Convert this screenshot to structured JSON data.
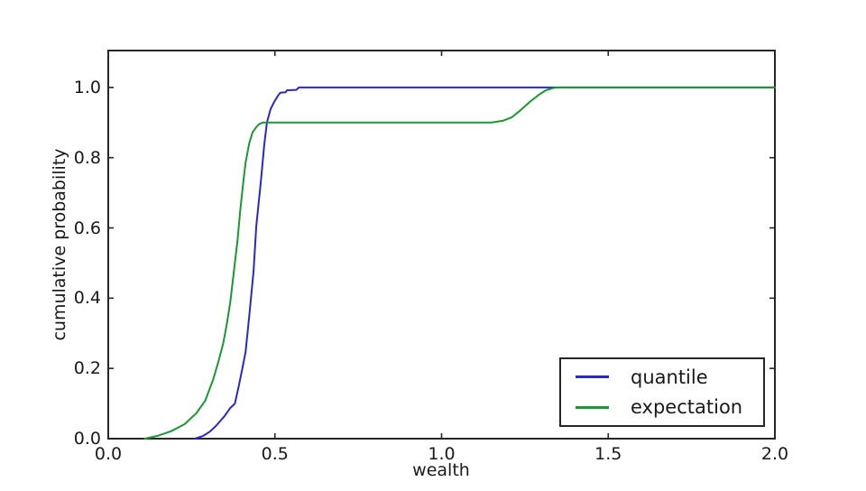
{
  "figure": {
    "background": "#ffffff",
    "text_color": "#1a1a1a",
    "axis_color": "#262626"
  },
  "chart_data": {
    "type": "line",
    "title": "",
    "xlabel": "wealth",
    "ylabel": "cumulative probability",
    "xlim": [
      0.0,
      2.0
    ],
    "ylim": [
      0.0,
      1.105
    ],
    "grid": false,
    "tick_direction": "in",
    "xticks": {
      "values": [
        0.0,
        0.5,
        1.0,
        1.5,
        2.0
      ],
      "labels": [
        "0.0",
        "0.5",
        "1.0",
        "1.5",
        "2.0"
      ]
    },
    "yticks": {
      "values": [
        0.0,
        0.2,
        0.4,
        0.6,
        0.8,
        1.0
      ],
      "labels": [
        "0.0",
        "0.2",
        "0.4",
        "0.6",
        "0.8",
        "1.0"
      ]
    },
    "legend": {
      "position": "lower right",
      "border_color": "#262626",
      "background": "#ffffff",
      "entries": [
        {
          "label": "quantile",
          "color": "#2828cc"
        },
        {
          "label": "expectation",
          "color": "#189a2e"
        }
      ]
    },
    "series": [
      {
        "name": "quantile",
        "color": "#2828cc",
        "points": [
          [
            0.26,
            0.0
          ],
          [
            0.285,
            0.008
          ],
          [
            0.305,
            0.02
          ],
          [
            0.323,
            0.036
          ],
          [
            0.347,
            0.062
          ],
          [
            0.366,
            0.087
          ],
          [
            0.38,
            0.1
          ],
          [
            0.393,
            0.156
          ],
          [
            0.404,
            0.208
          ],
          [
            0.412,
            0.246
          ],
          [
            0.423,
            0.349
          ],
          [
            0.436,
            0.477
          ],
          [
            0.444,
            0.605
          ],
          [
            0.458,
            0.733
          ],
          [
            0.468,
            0.836
          ],
          [
            0.476,
            0.9
          ],
          [
            0.487,
            0.938
          ],
          [
            0.498,
            0.959
          ],
          [
            0.511,
            0.979
          ],
          [
            0.516,
            0.985
          ],
          [
            0.532,
            0.986
          ],
          [
            0.536,
            0.992
          ],
          [
            0.564,
            0.993
          ],
          [
            0.572,
            1.0
          ],
          [
            2.0,
            1.0
          ]
        ]
      },
      {
        "name": "expectation",
        "color": "#189a2e",
        "points": [
          [
            0.11,
            0.0
          ],
          [
            0.148,
            0.008
          ],
          [
            0.188,
            0.021
          ],
          [
            0.229,
            0.041
          ],
          [
            0.264,
            0.072
          ],
          [
            0.291,
            0.108
          ],
          [
            0.315,
            0.169
          ],
          [
            0.331,
            0.221
          ],
          [
            0.345,
            0.272
          ],
          [
            0.355,
            0.323
          ],
          [
            0.366,
            0.387
          ],
          [
            0.377,
            0.477
          ],
          [
            0.388,
            0.567
          ],
          [
            0.396,
            0.649
          ],
          [
            0.404,
            0.721
          ],
          [
            0.412,
            0.785
          ],
          [
            0.423,
            0.841
          ],
          [
            0.433,
            0.872
          ],
          [
            0.444,
            0.887
          ],
          [
            0.452,
            0.895
          ],
          [
            0.463,
            0.9
          ],
          [
            1.15,
            0.9
          ],
          [
            1.184,
            0.905
          ],
          [
            1.211,
            0.915
          ],
          [
            1.238,
            0.936
          ],
          [
            1.265,
            0.959
          ],
          [
            1.292,
            0.979
          ],
          [
            1.313,
            0.992
          ],
          [
            1.338,
            0.999
          ],
          [
            1.36,
            1.0
          ],
          [
            2.0,
            1.0
          ]
        ]
      }
    ]
  }
}
